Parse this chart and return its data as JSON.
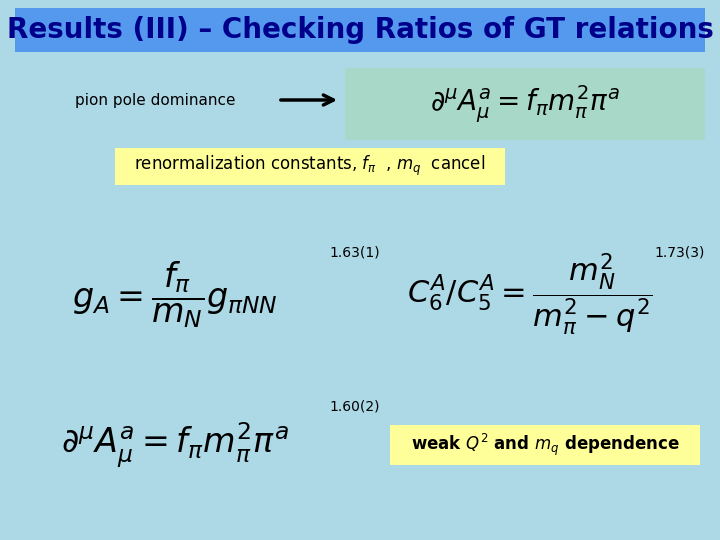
{
  "background_color": "#add8e6",
  "title": "Results (III) – Checking Ratios of GT relations",
  "title_bg": "#5599ee",
  "title_fg": "#00008b",
  "title_fontsize": 20,
  "pion_text": "pion pole dominance",
  "formula_box_color": "#a8d8c8",
  "renorm_box_color": "#ffff99",
  "renorm_text": "renormalization constants, $f_{\\pi}$  , $m_{q}$  cancel",
  "value_163": "1.63(1)",
  "value_173": "1.73(3)",
  "value_160": "1.60(2)",
  "weak_box_color": "#ffff99",
  "weak_text": "weak $Q^{2}$ and $m_{q}$ dependence",
  "arrow_color": "black"
}
